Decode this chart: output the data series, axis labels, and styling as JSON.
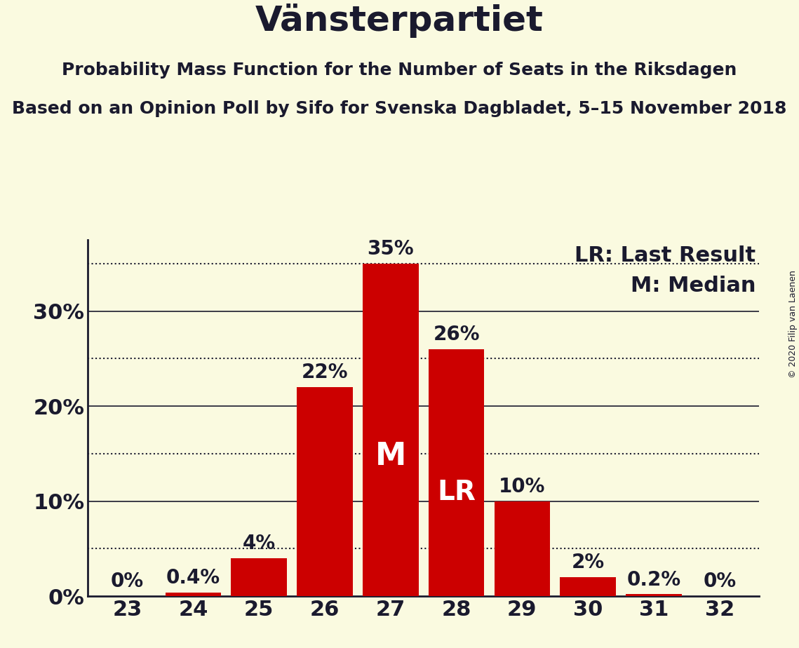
{
  "title": "Vänsterpartiet",
  "subtitle": "Probability Mass Function for the Number of Seats in the Riksdagen",
  "subsubtitle": "Based on an Opinion Poll by Sifo for Svenska Dagbladet, 5–15 November 2018",
  "copyright": "© 2020 Filip van Laenen",
  "categories": [
    23,
    24,
    25,
    26,
    27,
    28,
    29,
    30,
    31,
    32
  ],
  "values": [
    0.0,
    0.4,
    4.0,
    22.0,
    35.0,
    26.0,
    10.0,
    2.0,
    0.2,
    0.0
  ],
  "bar_color": "#cc0000",
  "background_color": "#fafae0",
  "text_color": "#1a1a2e",
  "median_bar": 27,
  "lr_bar": 28,
  "median_label": "M",
  "lr_label": "LR",
  "legend_lr": "LR: Last Result",
  "legend_m": "M: Median",
  "ylim": [
    0,
    37.5
  ],
  "yticks_labeled": [
    0,
    10,
    20,
    30
  ],
  "yticks_solid": [
    10,
    20,
    30
  ],
  "yticks_dotted": [
    5,
    15,
    25,
    35
  ],
  "grid_color": "#1a1a2e",
  "bar_width": 0.85,
  "title_fontsize": 36,
  "subtitle_fontsize": 18,
  "subsubtitle_fontsize": 18,
  "axis_fontsize": 22,
  "bar_label_fontsize": 20,
  "bar_label_color_dark": "#1a1a2e",
  "bar_label_color_white": "#ffffff",
  "annotation_fontsize": 22,
  "inside_label_fontsize": 32
}
